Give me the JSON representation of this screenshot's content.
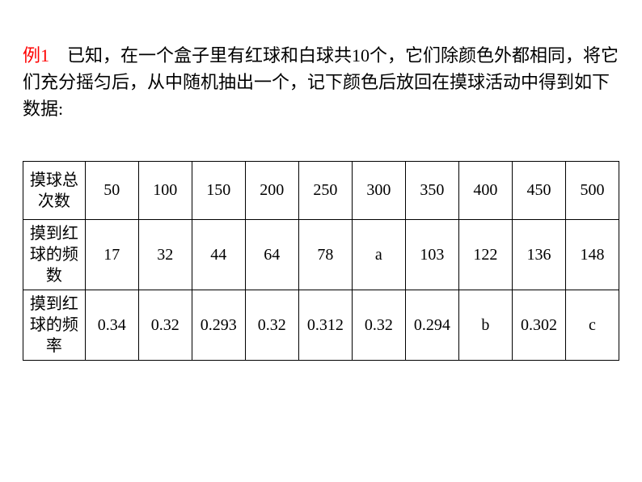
{
  "problem": {
    "label": "例1",
    "text": "　已知，在一个盒子里有红球和白球共10个，它们除颜色外都相同，将它们充分摇匀后，从中随机抽出一个，记下颜色后放回在摸球活动中得到如下数据:"
  },
  "table": {
    "headers": [
      "摸球总次数",
      "摸到红球的频数",
      "摸到红球的频率"
    ],
    "columns": [
      "50",
      "100",
      "150",
      "200",
      "250",
      "300",
      "350",
      "400",
      "450",
      "500"
    ],
    "row1": [
      "50",
      "100",
      "150",
      "200",
      "250",
      "300",
      "350",
      "400",
      "450",
      "500"
    ],
    "row2": [
      "17",
      "32",
      "44",
      "64",
      "78",
      "a",
      "103",
      "122",
      "136",
      "148"
    ],
    "row3": [
      "0.34",
      "0.32",
      "0.293",
      "0.32",
      "0.312",
      "0.32",
      "0.294",
      "b",
      "0.302",
      "c"
    ]
  },
  "styling": {
    "label_color": "#ff0000",
    "text_color": "#000000",
    "border_color": "#000000",
    "background_color": "#ffffff",
    "font_size_text": 22,
    "font_size_table": 20
  }
}
